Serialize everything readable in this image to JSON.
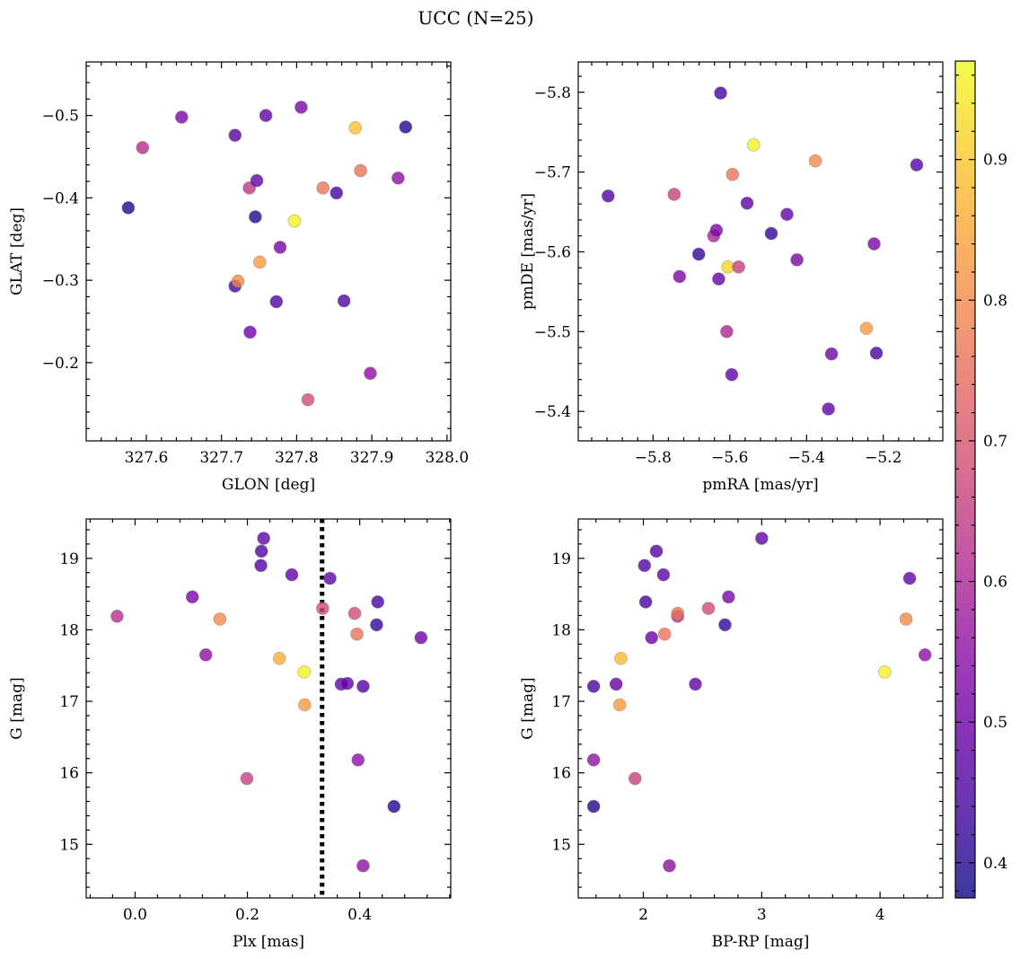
{
  "figure": {
    "title": "UCC (N=25)"
  },
  "colorbar": {
    "colormap": "plasma",
    "range": [
      0.375,
      0.97
    ],
    "ticks": [
      0.4,
      0.5,
      0.6,
      0.7,
      0.8,
      0.9
    ],
    "tick_labels": [
      "0.4",
      "0.5",
      "0.6",
      "0.7",
      "0.8",
      "0.9"
    ]
  },
  "chart_data": [
    {
      "type": "scatter",
      "xlabel": "GLON [deg]",
      "ylabel": "GLAT [deg]",
      "xlim": [
        327.52,
        328.005
      ],
      "ylim": [
        -0.565,
        -0.105
      ],
      "xticks": [
        327.6,
        327.7,
        327.8,
        327.9,
        328.0
      ],
      "xtick_labels": [
        "327.6",
        "327.7",
        "327.8",
        "327.9",
        "328.0"
      ],
      "yticks": [
        -0.2,
        -0.3,
        -0.4,
        -0.5
      ],
      "ytick_labels": [
        "−0.2",
        "−0.3",
        "−0.4",
        "−0.5"
      ],
      "points": [
        {
          "x": 327.815,
          "y": -0.155,
          "c": 0.68
        },
        {
          "x": 327.898,
          "y": -0.187,
          "c": 0.55
        },
        {
          "x": 327.738,
          "y": -0.237,
          "c": 0.5
        },
        {
          "x": 327.773,
          "y": -0.274,
          "c": 0.46
        },
        {
          "x": 327.863,
          "y": -0.275,
          "c": 0.46
        },
        {
          "x": 327.718,
          "y": -0.293,
          "c": 0.44
        },
        {
          "x": 327.722,
          "y": -0.299,
          "c": 0.8
        },
        {
          "x": 327.751,
          "y": -0.322,
          "c": 0.83
        },
        {
          "x": 327.778,
          "y": -0.34,
          "c": 0.52
        },
        {
          "x": 327.797,
          "y": -0.372,
          "c": 0.96
        },
        {
          "x": 327.745,
          "y": -0.377,
          "c": 0.4
        },
        {
          "x": 327.576,
          "y": -0.388,
          "c": 0.4
        },
        {
          "x": 327.853,
          "y": -0.406,
          "c": 0.44
        },
        {
          "x": 327.737,
          "y": -0.412,
          "c": 0.64
        },
        {
          "x": 327.835,
          "y": -0.412,
          "c": 0.76
        },
        {
          "x": 327.747,
          "y": -0.421,
          "c": 0.48
        },
        {
          "x": 327.935,
          "y": -0.424,
          "c": 0.55
        },
        {
          "x": 327.885,
          "y": -0.433,
          "c": 0.76
        },
        {
          "x": 327.595,
          "y": -0.461,
          "c": 0.62
        },
        {
          "x": 327.718,
          "y": -0.476,
          "c": 0.46
        },
        {
          "x": 327.878,
          "y": -0.485,
          "c": 0.89
        },
        {
          "x": 327.945,
          "y": -0.486,
          "c": 0.4
        },
        {
          "x": 327.647,
          "y": -0.498,
          "c": 0.52
        },
        {
          "x": 327.759,
          "y": -0.5,
          "c": 0.48
        },
        {
          "x": 327.806,
          "y": -0.51,
          "c": 0.52
        }
      ]
    },
    {
      "type": "scatter",
      "xlabel": "pmRA [mas/yr]",
      "ylabel": "pmDE [mas/yr]",
      "xlim": [
        -5.995,
        -5.045
      ],
      "ylim": [
        -5.838,
        -5.363
      ],
      "xticks": [
        -5.8,
        -5.6,
        -5.4,
        -5.2
      ],
      "xtick_labels": [
        "−5.8",
        "−5.6",
        "−5.4",
        "−5.2"
      ],
      "yticks": [
        -5.4,
        -5.5,
        -5.6,
        -5.7,
        -5.8
      ],
      "ytick_labels": [
        "−5.4",
        "−5.5",
        "−5.6",
        "−5.7",
        "−5.8"
      ],
      "points": [
        {
          "x": -5.343,
          "y": -5.403,
          "c": 0.48
        },
        {
          "x": -5.595,
          "y": -5.446,
          "c": 0.48
        },
        {
          "x": -5.335,
          "y": -5.472,
          "c": 0.5
        },
        {
          "x": -5.218,
          "y": -5.473,
          "c": 0.44
        },
        {
          "x": -5.608,
          "y": -5.5,
          "c": 0.6
        },
        {
          "x": -5.244,
          "y": -5.504,
          "c": 0.83
        },
        {
          "x": -5.629,
          "y": -5.566,
          "c": 0.48
        },
        {
          "x": -5.731,
          "y": -5.569,
          "c": 0.52
        },
        {
          "x": -5.605,
          "y": -5.581,
          "c": 0.92
        },
        {
          "x": -5.577,
          "y": -5.581,
          "c": 0.66
        },
        {
          "x": -5.425,
          "y": -5.59,
          "c": 0.52
        },
        {
          "x": -5.681,
          "y": -5.597,
          "c": 0.42
        },
        {
          "x": -5.224,
          "y": -5.61,
          "c": 0.52
        },
        {
          "x": -5.642,
          "y": -5.62,
          "c": 0.6
        },
        {
          "x": -5.492,
          "y": -5.623,
          "c": 0.42
        },
        {
          "x": -5.635,
          "y": -5.627,
          "c": 0.52
        },
        {
          "x": -5.451,
          "y": -5.647,
          "c": 0.48
        },
        {
          "x": -5.555,
          "y": -5.661,
          "c": 0.48
        },
        {
          "x": -5.917,
          "y": -5.67,
          "c": 0.46
        },
        {
          "x": -5.745,
          "y": -5.672,
          "c": 0.66
        },
        {
          "x": -5.593,
          "y": -5.697,
          "c": 0.76
        },
        {
          "x": -5.113,
          "y": -5.709,
          "c": 0.46
        },
        {
          "x": -5.377,
          "y": -5.714,
          "c": 0.8
        },
        {
          "x": -5.538,
          "y": -5.734,
          "c": 0.96
        },
        {
          "x": -5.624,
          "y": -5.799,
          "c": 0.44
        }
      ]
    },
    {
      "type": "scatter",
      "xlabel": "Plx [mas]",
      "ylabel": "G [mag]",
      "xlim": [
        -0.087,
        0.562
      ],
      "ylim": [
        19.55,
        14.25
      ],
      "xticks": [
        0.0,
        0.2,
        0.4
      ],
      "xtick_labels": [
        "0.0",
        "0.2",
        "0.4"
      ],
      "yticks": [
        15,
        16,
        17,
        18,
        19
      ],
      "ytick_labels": [
        "15",
        "16",
        "17",
        "18",
        "19"
      ],
      "vline": 0.333,
      "points": [
        {
          "x": 0.406,
          "y": 14.7,
          "c": 0.55
        },
        {
          "x": 0.461,
          "y": 15.53,
          "c": 0.4
        },
        {
          "x": 0.199,
          "y": 15.92,
          "c": 0.66
        },
        {
          "x": 0.397,
          "y": 16.18,
          "c": 0.55
        },
        {
          "x": 0.302,
          "y": 16.95,
          "c": 0.83
        },
        {
          "x": 0.406,
          "y": 17.21,
          "c": 0.46
        },
        {
          "x": 0.367,
          "y": 17.24,
          "c": 0.48
        },
        {
          "x": 0.378,
          "y": 17.25,
          "c": 0.48
        },
        {
          "x": 0.301,
          "y": 17.41,
          "c": 0.96
        },
        {
          "x": 0.257,
          "y": 17.6,
          "c": 0.86
        },
        {
          "x": 0.126,
          "y": 17.65,
          "c": 0.55
        },
        {
          "x": 0.509,
          "y": 17.89,
          "c": 0.5
        },
        {
          "x": 0.395,
          "y": 17.94,
          "c": 0.76
        },
        {
          "x": 0.43,
          "y": 18.07,
          "c": 0.42
        },
        {
          "x": 0.151,
          "y": 18.15,
          "c": 0.8
        },
        {
          "x": -0.032,
          "y": 18.19,
          "c": 0.62
        },
        {
          "x": 0.391,
          "y": 18.23,
          "c": 0.68
        },
        {
          "x": 0.334,
          "y": 18.3,
          "c": 0.68
        },
        {
          "x": 0.432,
          "y": 18.39,
          "c": 0.44
        },
        {
          "x": 0.102,
          "y": 18.46,
          "c": 0.52
        },
        {
          "x": 0.347,
          "y": 18.72,
          "c": 0.48
        },
        {
          "x": 0.279,
          "y": 18.77,
          "c": 0.48
        },
        {
          "x": 0.224,
          "y": 18.9,
          "c": 0.46
        },
        {
          "x": 0.225,
          "y": 19.1,
          "c": 0.46
        },
        {
          "x": 0.229,
          "y": 19.28,
          "c": 0.48
        }
      ]
    },
    {
      "type": "scatter",
      "xlabel": "BP-RP [mag]",
      "ylabel": "G [mag]",
      "xlim": [
        1.45,
        4.53
      ],
      "ylim": [
        19.55,
        14.25
      ],
      "xticks": [
        2,
        3,
        4
      ],
      "xtick_labels": [
        "2",
        "3",
        "4"
      ],
      "yticks": [
        15,
        16,
        17,
        18,
        19
      ],
      "ytick_labels": [
        "15",
        "16",
        "17",
        "18",
        "19"
      ],
      "points": [
        {
          "x": 2.22,
          "y": 14.7,
          "c": 0.55
        },
        {
          "x": 1.58,
          "y": 15.53,
          "c": 0.4
        },
        {
          "x": 1.93,
          "y": 15.92,
          "c": 0.66
        },
        {
          "x": 1.58,
          "y": 16.18,
          "c": 0.55
        },
        {
          "x": 1.8,
          "y": 16.95,
          "c": 0.83
        },
        {
          "x": 1.58,
          "y": 17.21,
          "c": 0.44
        },
        {
          "x": 1.77,
          "y": 17.24,
          "c": 0.48
        },
        {
          "x": 2.44,
          "y": 17.24,
          "c": 0.48
        },
        {
          "x": 4.04,
          "y": 17.41,
          "c": 0.96
        },
        {
          "x": 1.81,
          "y": 17.6,
          "c": 0.88
        },
        {
          "x": 4.38,
          "y": 17.65,
          "c": 0.55
        },
        {
          "x": 2.07,
          "y": 17.89,
          "c": 0.5
        },
        {
          "x": 2.18,
          "y": 17.94,
          "c": 0.76
        },
        {
          "x": 2.69,
          "y": 18.07,
          "c": 0.42
        },
        {
          "x": 4.22,
          "y": 18.15,
          "c": 0.8
        },
        {
          "x": 2.29,
          "y": 18.19,
          "c": 0.62
        },
        {
          "x": 2.29,
          "y": 18.23,
          "c": 0.76
        },
        {
          "x": 2.55,
          "y": 18.3,
          "c": 0.68
        },
        {
          "x": 2.02,
          "y": 18.39,
          "c": 0.44
        },
        {
          "x": 2.72,
          "y": 18.46,
          "c": 0.52
        },
        {
          "x": 4.25,
          "y": 18.72,
          "c": 0.48
        },
        {
          "x": 2.17,
          "y": 18.77,
          "c": 0.48
        },
        {
          "x": 2.01,
          "y": 18.9,
          "c": 0.46
        },
        {
          "x": 2.11,
          "y": 19.1,
          "c": 0.46
        },
        {
          "x": 3.0,
          "y": 19.28,
          "c": 0.48
        }
      ]
    }
  ]
}
